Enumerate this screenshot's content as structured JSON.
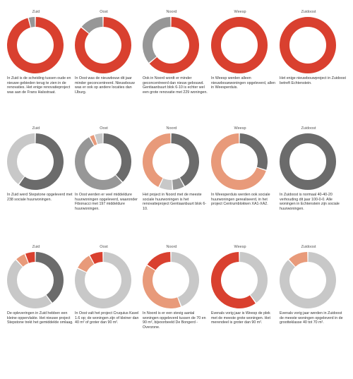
{
  "colors": {
    "red": "#d9402f",
    "salmon": "#e89a7a",
    "dark": "#6b6b6b",
    "mid": "#979797",
    "light": "#c8c8c8",
    "lighter": "#d8d8d8"
  },
  "chart_data": [
    {
      "type": "pie",
      "row": 1,
      "panels": [
        {
          "region": "Zuid",
          "caption": "In Zuid is de scheiding tussen oude en nieuwe gebieden terug te zien in de renovaties. Het enige renovatieproject was aan de Frans Halsstraat.",
          "slices": [
            {
              "color": "red",
              "value": 96
            },
            {
              "color": "mid",
              "value": 4
            }
          ]
        },
        {
          "region": "Oost",
          "caption": "In Oost was de nieuwbouw dit jaar minder geconcentreerd. Nieuwbouw was er ook op andere locaties dan IJburg.",
          "slices": [
            {
              "color": "red",
              "value": 86
            },
            {
              "color": "mid",
              "value": 14
            }
          ]
        },
        {
          "region": "Noord",
          "caption": "Ook in Noord wordt er minder geconcentreerd dan nieuw gebouwd. Gentiaanbuurt blok 6-10 is echter wel een grote renovatie met 229 woningen.",
          "slices": [
            {
              "color": "red",
              "value": 64
            },
            {
              "color": "mid",
              "value": 36
            }
          ]
        },
        {
          "region": "Weesp",
          "caption": "In Weesp werden alleen nieuwbouwwoningen opgeleverd, allen in Weesperduis.",
          "slices": [
            {
              "color": "red",
              "value": 100
            }
          ]
        },
        {
          "region": "Zuidoost",
          "caption": "Het enige nieuwbouwproject in Zuidoost betreft Echtenstein.",
          "slices": [
            {
              "color": "red",
              "value": 100
            }
          ]
        }
      ]
    },
    {
      "type": "pie",
      "row": 2,
      "panels": [
        {
          "region": "Zuid",
          "caption": "In Zuid werd Stepstone opgeleverd met 238 sociale huurwoningen.",
          "slices": [
            {
              "color": "dark",
              "value": 60
            },
            {
              "color": "light",
              "value": 40
            }
          ]
        },
        {
          "region": "Oost",
          "caption": "In Oost werden er veel middeldure huurwoningen opgeleverd, waaronder Fibonacci met 197 middeldure huurwoningen.",
          "slices": [
            {
              "color": "dark",
              "value": 38
            },
            {
              "color": "mid",
              "value": 54
            },
            {
              "color": "salmon",
              "value": 3
            },
            {
              "color": "light",
              "value": 5
            }
          ]
        },
        {
          "region": "Noord",
          "caption": "Het project in Noord met de meeste sociale huurwoningen is het renovatieproject Gentiaanbuurt blok 6-10.",
          "slices": [
            {
              "color": "dark",
              "value": 42
            },
            {
              "color": "mid",
              "value": 7
            },
            {
              "color": "light",
              "value": 8
            },
            {
              "color": "salmon",
              "value": 43
            }
          ]
        },
        {
          "region": "Weesp",
          "caption": "In Weesperduis werden ook sociale huurwoningen gerealiseerd, in het project Centrumblokken XA1-XA2.",
          "slices": [
            {
              "color": "dark",
              "value": 30
            },
            {
              "color": "salmon",
              "value": 70
            }
          ]
        },
        {
          "region": "Zuidoost",
          "caption": "In Zuidoost is normaal 40-40-20 verhouding dit jaar 100-0-0. Alle woningen in Echtenstein zijn sociale huurwoningen.",
          "slices": [
            {
              "color": "dark",
              "value": 100
            }
          ]
        }
      ]
    },
    {
      "type": "pie",
      "row": 3,
      "panels": [
        {
          "region": "Zuid",
          "caption": "De opleveringen in Zuid hebben een kleine oppervlakte. Het nieuwe project Stepstone trekt het gemiddelde omlaag.",
          "slices": [
            {
              "color": "dark",
              "value": 40
            },
            {
              "color": "light",
              "value": 48
            },
            {
              "color": "salmon",
              "value": 6
            },
            {
              "color": "red",
              "value": 6
            }
          ]
        },
        {
          "region": "Oost",
          "caption": "In Oost valt het project Cruquius Kavel 1.6 op; de woningen zijn of kleiner dan 40 m² of groter dan 90 m².",
          "slices": [
            {
              "color": "light",
              "value": 82
            },
            {
              "color": "salmon",
              "value": 10
            },
            {
              "color": "red",
              "value": 8
            }
          ]
        },
        {
          "region": "Noord",
          "caption": "In Noord is er een stevig aantal woningen opgeleverd tussen de 70 en 90 m², bijvoorbeeld De Bongerd - Overzone.",
          "slices": [
            {
              "color": "light",
              "value": 44
            },
            {
              "color": "salmon",
              "value": 40
            },
            {
              "color": "red",
              "value": 16
            }
          ]
        },
        {
          "region": "Weesp",
          "caption": "Evenals vorig jaar is Weesp de plek met de meeste grote woningen. Het merendeel is groter dan 90 m².",
          "slices": [
            {
              "color": "light",
              "value": 40
            },
            {
              "color": "red",
              "value": 60
            }
          ]
        },
        {
          "region": "Zuidoost",
          "caption": "Evenals vorig jaar werden in Zuidoost de meeste woningen opgeleverd in de grootteklasse 40 tot 70 m².",
          "slices": [
            {
              "color": "light",
              "value": 88
            },
            {
              "color": "salmon",
              "value": 12
            }
          ]
        }
      ]
    }
  ]
}
